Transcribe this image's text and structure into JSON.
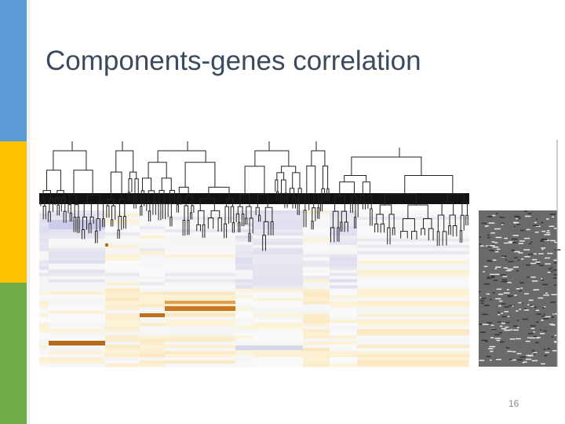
{
  "title": "Components-genes correlation",
  "page_number": "16"
}
